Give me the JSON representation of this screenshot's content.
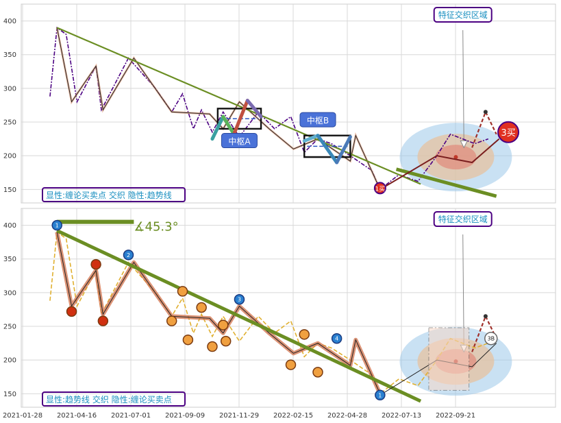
{
  "colors": {
    "trend": "#6b8e23",
    "price": "#4b0082",
    "price_bottom": "#e0b030",
    "stroke": "#8b1e1e",
    "panel_text": "#1a8fc0",
    "legend_border": "#4b0082",
    "box_fill": "#4a72d8"
  },
  "chart_data": [
    {
      "type": "line",
      "panel": "top",
      "ylim": [
        130,
        425
      ],
      "yticks": [
        150,
        200,
        250,
        300,
        350,
        400
      ],
      "xticks": [
        "2021-01-28",
        "2021-04-16",
        "2021-07-01",
        "2021-09-09",
        "2021-11-29",
        "2022-02-15",
        "2022-04-28",
        "2022-07-13",
        "2022-09-21"
      ],
      "x_index": [
        0,
        1,
        2,
        3,
        4,
        5,
        6,
        7,
        8
      ],
      "legend_text": "显性:缠论买卖点 交织 隐性:趋势线",
      "annotation_zone": "特征交织区域",
      "box_labels": [
        "中枢A",
        "中枢B"
      ],
      "buy_labels": [
        "1买",
        "3买"
      ],
      "price_points": [
        [
          0.05,
          288
        ],
        [
          0.18,
          390
        ],
        [
          0.35,
          380
        ],
        [
          0.55,
          280
        ],
        [
          0.9,
          333
        ],
        [
          1.0,
          268
        ],
        [
          1.5,
          345
        ],
        [
          2.0,
          300
        ],
        [
          2.3,
          265
        ],
        [
          2.5,
          292
        ],
        [
          2.7,
          240
        ],
        [
          2.85,
          268
        ],
        [
          3.05,
          235
        ],
        [
          3.25,
          265
        ],
        [
          3.55,
          228
        ],
        [
          3.9,
          265
        ],
        [
          4.2,
          240
        ],
        [
          4.5,
          258
        ],
        [
          4.75,
          205
        ],
        [
          5.0,
          225
        ],
        [
          5.25,
          218
        ],
        [
          5.6,
          200
        ],
        [
          6.0,
          178
        ],
        [
          6.15,
          150
        ],
        [
          6.5,
          172
        ],
        [
          6.85,
          162
        ],
        [
          7.2,
          200
        ],
        [
          7.45,
          232
        ],
        [
          7.9,
          218
        ],
        [
          8.15,
          225
        ]
      ],
      "trend_line": [
        [
          0.18,
          390
        ],
        [
          6.9,
          158
        ]
      ],
      "bi_segments": [
        [
          0.18,
          390
        ],
        [
          0.45,
          280
        ],
        [
          0.9,
          333
        ],
        [
          1.03,
          268
        ],
        [
          1.6,
          345
        ],
        [
          2.3,
          265
        ],
        [
          3.0,
          262
        ],
        [
          3.25,
          240
        ],
        [
          3.55,
          280
        ],
        [
          4.1,
          240
        ],
        [
          4.55,
          210
        ],
        [
          5.0,
          225
        ],
        [
          5.6,
          192
        ],
        [
          5.7,
          230
        ],
        [
          6.15,
          150
        ]
      ]
    },
    {
      "type": "line",
      "panel": "bottom",
      "ylim": [
        130,
        425
      ],
      "yticks": [
        150,
        200,
        250,
        300,
        350,
        400
      ],
      "xticks": [
        "2021-01-28",
        "2021-04-16",
        "2021-07-01",
        "2021-09-09",
        "2021-11-29",
        "2022-02-15",
        "2022-04-28",
        "2022-07-13",
        "2022-09-21"
      ],
      "legend_text": "显性:趋势线 交织 隐性:缠论买卖点",
      "annotation_zone": "特征交织区域",
      "angle_label": "∡45.3°",
      "markers": [
        {
          "x": 0.18,
          "y": 400,
          "label": "1"
        },
        {
          "x": 1.5,
          "y": 356,
          "label": "2"
        },
        {
          "x": 3.55,
          "y": 290,
          "label": "3"
        },
        {
          "x": 5.35,
          "y": 232,
          "label": "4"
        },
        {
          "x": 6.15,
          "y": 148,
          "label": "1"
        },
        {
          "x": 8.2,
          "y": 232,
          "label": "3B"
        }
      ],
      "trend_line": [
        [
          0.18,
          392
        ],
        [
          6.9,
          139
        ]
      ]
    }
  ]
}
